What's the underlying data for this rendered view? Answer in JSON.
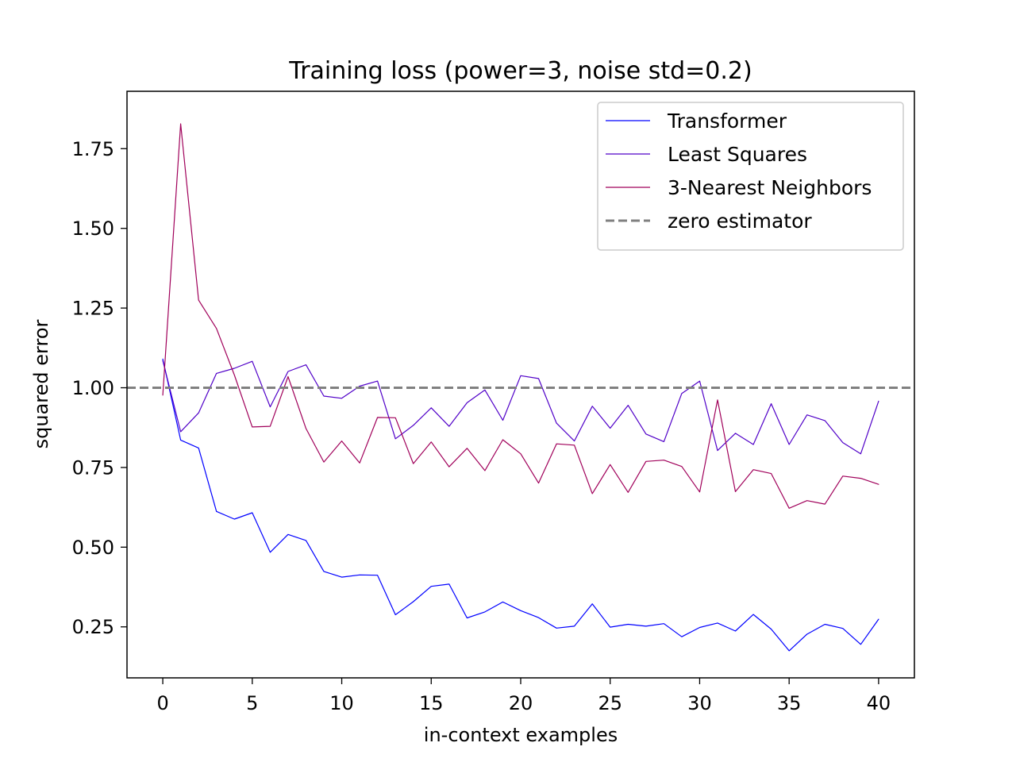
{
  "chart_data": {
    "type": "line",
    "title": "Training loss (power=3, noise std=0.2)",
    "xlabel": "in-context examples",
    "ylabel": "squared error",
    "xlim": [
      -2,
      42
    ],
    "ylim": [
      0.09,
      1.93
    ],
    "xticks": [
      0,
      5,
      10,
      15,
      20,
      25,
      30,
      35,
      40
    ],
    "xtick_labels": [
      "0",
      "5",
      "10",
      "15",
      "20",
      "25",
      "30",
      "35",
      "40"
    ],
    "yticks": [
      0.25,
      0.5,
      0.75,
      1.0,
      1.25,
      1.5,
      1.75
    ],
    "ytick_labels": [
      "0.25",
      "0.50",
      "0.75",
      "1.00",
      "1.25",
      "1.50",
      "1.75"
    ],
    "grid": false,
    "legend_position": "top-right",
    "x": [
      0,
      1,
      2,
      3,
      4,
      5,
      6,
      7,
      8,
      9,
      10,
      11,
      12,
      13,
      14,
      15,
      16,
      17,
      18,
      19,
      20,
      21,
      22,
      23,
      24,
      25,
      26,
      27,
      28,
      29,
      30,
      31,
      32,
      33,
      34,
      35,
      36,
      37,
      38,
      39,
      40
    ],
    "series": [
      {
        "name": "Transformer",
        "color": "#0000ff",
        "style": "solid",
        "values": [
          1.09,
          0.836,
          0.811,
          0.612,
          0.588,
          0.608,
          0.484,
          0.54,
          0.521,
          0.424,
          0.406,
          0.413,
          0.412,
          0.288,
          0.329,
          0.377,
          0.384,
          0.278,
          0.297,
          0.328,
          0.301,
          0.279,
          0.246,
          0.252,
          0.322,
          0.249,
          0.258,
          0.252,
          0.26,
          0.219,
          0.248,
          0.262,
          0.237,
          0.289,
          0.243,
          0.175,
          0.227,
          0.258,
          0.245,
          0.195,
          0.274
        ]
      },
      {
        "name": "Least Squares",
        "color": "#5000c8",
        "style": "solid",
        "values": [
          1.085,
          0.862,
          0.921,
          1.045,
          1.061,
          1.083,
          0.94,
          1.051,
          1.072,
          0.974,
          0.967,
          1.005,
          1.021,
          0.84,
          0.882,
          0.937,
          0.879,
          0.953,
          0.993,
          0.898,
          1.038,
          1.029,
          0.889,
          0.833,
          0.942,
          0.873,
          0.945,
          0.855,
          0.831,
          0.982,
          1.021,
          0.803,
          0.857,
          0.822,
          0.95,
          0.822,
          0.915,
          0.897,
          0.828,
          0.793,
          0.958
        ]
      },
      {
        "name": "3-Nearest Neighbors",
        "color": "#a0005a",
        "style": "solid",
        "values": [
          0.977,
          1.828,
          1.275,
          1.186,
          1.04,
          0.877,
          0.879,
          1.035,
          0.872,
          0.767,
          0.833,
          0.764,
          0.907,
          0.906,
          0.762,
          0.83,
          0.752,
          0.81,
          0.74,
          0.837,
          0.793,
          0.701,
          0.824,
          0.82,
          0.668,
          0.759,
          0.672,
          0.769,
          0.773,
          0.753,
          0.673,
          0.962,
          0.674,
          0.743,
          0.731,
          0.622,
          0.646,
          0.635,
          0.723,
          0.716,
          0.697
        ]
      }
    ],
    "reference_lines": [
      {
        "name": "zero estimator",
        "color": "#808080",
        "style": "dashed",
        "y": 1.0
      }
    ]
  }
}
